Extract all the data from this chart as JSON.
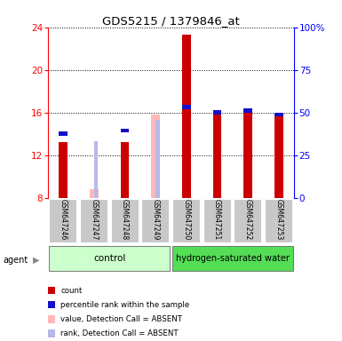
{
  "title": "GDS5215 / 1379846_at",
  "samples": [
    "GSM647246",
    "GSM647247",
    "GSM647248",
    "GSM647249",
    "GSM647250",
    "GSM647251",
    "GSM647252",
    "GSM647253"
  ],
  "ylim_left": [
    8,
    24
  ],
  "ylim_right": [
    0,
    100
  ],
  "yticks_left": [
    8,
    12,
    16,
    20,
    24
  ],
  "yticks_right": [
    0,
    25,
    50,
    75,
    100
  ],
  "ytick_labels_right": [
    "0",
    "25",
    "50",
    "75",
    "100%"
  ],
  "red_values": [
    13.2,
    null,
    13.2,
    null,
    23.3,
    16.0,
    16.3,
    16.0
  ],
  "blue_values": [
    14.0,
    null,
    14.3,
    null,
    16.5,
    16.0,
    16.2,
    15.8
  ],
  "pink_values": [
    null,
    8.8,
    null,
    15.8,
    null,
    null,
    null,
    null
  ],
  "lavender_values": [
    null,
    13.3,
    null,
    15.3,
    null,
    null,
    null,
    null
  ],
  "red_color": "#cc0000",
  "blue_color": "#1111cc",
  "pink_color": "#ffb8b8",
  "lavender_color": "#b8b8e8",
  "legend_items": [
    {
      "label": "count",
      "color": "#cc0000"
    },
    {
      "label": "percentile rank within the sample",
      "color": "#1111cc"
    },
    {
      "label": "value, Detection Call = ABSENT",
      "color": "#ffb8b8"
    },
    {
      "label": "rank, Detection Call = ABSENT",
      "color": "#b8b8e8"
    }
  ]
}
